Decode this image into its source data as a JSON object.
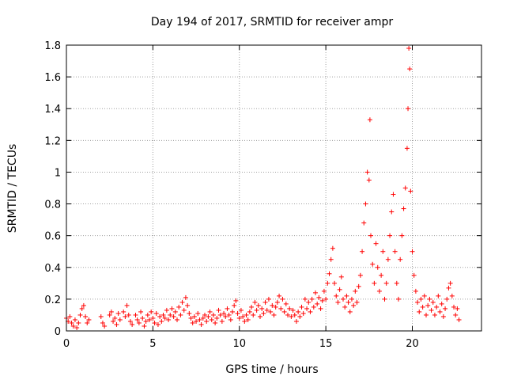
{
  "chart_data": {
    "type": "scatter",
    "title": "Day 194 of 2017, SRMTID for receiver ampr",
    "xlabel": "GPS time / hours",
    "ylabel": "SRMTID / TECUs",
    "xlim": [
      0,
      24
    ],
    "ylim": [
      0,
      1.8
    ],
    "x_ticks": [
      0,
      5,
      10,
      15,
      20
    ],
    "y_ticks": [
      0,
      0.2,
      0.4,
      0.6,
      0.8,
      1,
      1.2,
      1.4,
      1.6,
      1.8
    ],
    "x_tick_labels": [
      "0",
      "5",
      "10",
      "15",
      "20"
    ],
    "y_tick_labels": [
      "0",
      "0.2",
      "0.4",
      "0.6",
      "0.8",
      "1",
      "1.2",
      "1.4",
      "1.6",
      "1.8"
    ],
    "grid": true,
    "marker": "plus",
    "marker_color": "#ff0000",
    "series": [
      {
        "name": "SRMTID",
        "points": [
          [
            0.0,
            0.08
          ],
          [
            0.1,
            0.06
          ],
          [
            0.2,
            0.09
          ],
          [
            0.3,
            0.05
          ],
          [
            0.4,
            0.03
          ],
          [
            0.5,
            0.07
          ],
          [
            0.6,
            0.02
          ],
          [
            0.7,
            0.05
          ],
          [
            0.8,
            0.1
          ],
          [
            0.9,
            0.14
          ],
          [
            1.0,
            0.16
          ],
          [
            1.1,
            0.09
          ],
          [
            1.2,
            0.05
          ],
          [
            1.3,
            0.07
          ],
          [
            2.0,
            0.09
          ],
          [
            2.1,
            0.05
          ],
          [
            2.2,
            0.03
          ],
          [
            2.5,
            0.1
          ],
          [
            2.6,
            0.12
          ],
          [
            2.7,
            0.06
          ],
          [
            2.8,
            0.08
          ],
          [
            2.9,
            0.04
          ],
          [
            3.0,
            0.11
          ],
          [
            3.1,
            0.07
          ],
          [
            3.3,
            0.12
          ],
          [
            3.4,
            0.09
          ],
          [
            3.5,
            0.16
          ],
          [
            3.6,
            0.1
          ],
          [
            3.7,
            0.06
          ],
          [
            3.8,
            0.04
          ],
          [
            4.0,
            0.1
          ],
          [
            4.1,
            0.07
          ],
          [
            4.2,
            0.05
          ],
          [
            4.3,
            0.12
          ],
          [
            4.4,
            0.08
          ],
          [
            4.5,
            0.03
          ],
          [
            4.6,
            0.06
          ],
          [
            4.7,
            0.1
          ],
          [
            4.8,
            0.07
          ],
          [
            4.9,
            0.12
          ],
          [
            5.0,
            0.08
          ],
          [
            5.1,
            0.05
          ],
          [
            5.2,
            0.11
          ],
          [
            5.3,
            0.04
          ],
          [
            5.4,
            0.09
          ],
          [
            5.5,
            0.06
          ],
          [
            5.6,
            0.1
          ],
          [
            5.7,
            0.08
          ],
          [
            5.8,
            0.13
          ],
          [
            5.9,
            0.07
          ],
          [
            6.0,
            0.1
          ],
          [
            6.1,
            0.14
          ],
          [
            6.2,
            0.09
          ],
          [
            6.3,
            0.12
          ],
          [
            6.4,
            0.07
          ],
          [
            6.5,
            0.15
          ],
          [
            6.6,
            0.1
          ],
          [
            6.7,
            0.18
          ],
          [
            6.8,
            0.13
          ],
          [
            6.9,
            0.21
          ],
          [
            7.0,
            0.16
          ],
          [
            7.1,
            0.11
          ],
          [
            7.2,
            0.08
          ],
          [
            7.3,
            0.05
          ],
          [
            7.4,
            0.09
          ],
          [
            7.5,
            0.06
          ],
          [
            7.6,
            0.11
          ],
          [
            7.7,
            0.07
          ],
          [
            7.8,
            0.04
          ],
          [
            7.9,
            0.08
          ],
          [
            8.0,
            0.1
          ],
          [
            8.1,
            0.06
          ],
          [
            8.2,
            0.09
          ],
          [
            8.3,
            0.12
          ],
          [
            8.4,
            0.07
          ],
          [
            8.5,
            0.1
          ],
          [
            8.6,
            0.05
          ],
          [
            8.7,
            0.08
          ],
          [
            8.8,
            0.13
          ],
          [
            8.9,
            0.1
          ],
          [
            9.0,
            0.06
          ],
          [
            9.1,
            0.11
          ],
          [
            9.2,
            0.09
          ],
          [
            9.3,
            0.14
          ],
          [
            9.4,
            0.1
          ],
          [
            9.5,
            0.07
          ],
          [
            9.6,
            0.12
          ],
          [
            9.7,
            0.16
          ],
          [
            9.8,
            0.19
          ],
          [
            9.9,
            0.11
          ],
          [
            10.0,
            0.08
          ],
          [
            10.1,
            0.13
          ],
          [
            10.2,
            0.09
          ],
          [
            10.3,
            0.06
          ],
          [
            10.4,
            0.1
          ],
          [
            10.5,
            0.07
          ],
          [
            10.6,
            0.12
          ],
          [
            10.7,
            0.15
          ],
          [
            10.8,
            0.1
          ],
          [
            10.9,
            0.18
          ],
          [
            11.0,
            0.13
          ],
          [
            11.1,
            0.16
          ],
          [
            11.2,
            0.09
          ],
          [
            11.3,
            0.14
          ],
          [
            11.4,
            0.11
          ],
          [
            11.5,
            0.18
          ],
          [
            11.6,
            0.13
          ],
          [
            11.7,
            0.2
          ],
          [
            11.8,
            0.12
          ],
          [
            11.9,
            0.16
          ],
          [
            12.0,
            0.1
          ],
          [
            12.1,
            0.15
          ],
          [
            12.2,
            0.18
          ],
          [
            12.3,
            0.22
          ],
          [
            12.4,
            0.14
          ],
          [
            12.5,
            0.2
          ],
          [
            12.6,
            0.12
          ],
          [
            12.7,
            0.17
          ],
          [
            12.8,
            0.1
          ],
          [
            12.9,
            0.14
          ],
          [
            13.0,
            0.09
          ],
          [
            13.1,
            0.13
          ],
          [
            13.2,
            0.1
          ],
          [
            13.3,
            0.06
          ],
          [
            13.4,
            0.12
          ],
          [
            13.5,
            0.09
          ],
          [
            13.6,
            0.15
          ],
          [
            13.7,
            0.11
          ],
          [
            13.8,
            0.2
          ],
          [
            13.9,
            0.14
          ],
          [
            14.0,
            0.18
          ],
          [
            14.1,
            0.12
          ],
          [
            14.2,
            0.2
          ],
          [
            14.3,
            0.15
          ],
          [
            14.4,
            0.24
          ],
          [
            14.5,
            0.17
          ],
          [
            14.6,
            0.21
          ],
          [
            14.7,
            0.14
          ],
          [
            14.8,
            0.19
          ],
          [
            14.9,
            0.25
          ],
          [
            15.0,
            0.2
          ],
          [
            15.1,
            0.3
          ],
          [
            15.2,
            0.36
          ],
          [
            15.3,
            0.45
          ],
          [
            15.4,
            0.52
          ],
          [
            15.5,
            0.3
          ],
          [
            15.6,
            0.22
          ],
          [
            15.7,
            0.18
          ],
          [
            15.8,
            0.26
          ],
          [
            15.9,
            0.34
          ],
          [
            16.0,
            0.2
          ],
          [
            16.1,
            0.15
          ],
          [
            16.2,
            0.22
          ],
          [
            16.3,
            0.18
          ],
          [
            16.4,
            0.12
          ],
          [
            16.5,
            0.2
          ],
          [
            16.6,
            0.16
          ],
          [
            16.7,
            0.25
          ],
          [
            16.8,
            0.18
          ],
          [
            16.9,
            0.28
          ],
          [
            17.0,
            0.35
          ],
          [
            17.1,
            0.5
          ],
          [
            17.2,
            0.68
          ],
          [
            17.3,
            0.8
          ],
          [
            17.4,
            1.0
          ],
          [
            17.5,
            0.95
          ],
          [
            17.55,
            1.33
          ],
          [
            17.6,
            0.6
          ],
          [
            17.7,
            0.42
          ],
          [
            17.8,
            0.3
          ],
          [
            17.9,
            0.55
          ],
          [
            18.0,
            0.4
          ],
          [
            18.1,
            0.25
          ],
          [
            18.2,
            0.35
          ],
          [
            18.3,
            0.5
          ],
          [
            18.4,
            0.2
          ],
          [
            18.5,
            0.3
          ],
          [
            18.6,
            0.45
          ],
          [
            18.7,
            0.6
          ],
          [
            18.8,
            0.75
          ],
          [
            18.9,
            0.86
          ],
          [
            19.0,
            0.5
          ],
          [
            19.1,
            0.3
          ],
          [
            19.2,
            0.2
          ],
          [
            19.3,
            0.45
          ],
          [
            19.4,
            0.6
          ],
          [
            19.5,
            0.77
          ],
          [
            19.6,
            0.9
          ],
          [
            19.7,
            1.15
          ],
          [
            19.75,
            1.4
          ],
          [
            19.8,
            1.78
          ],
          [
            19.85,
            1.65
          ],
          [
            19.9,
            0.88
          ],
          [
            20.0,
            0.5
          ],
          [
            20.1,
            0.35
          ],
          [
            20.2,
            0.25
          ],
          [
            20.3,
            0.18
          ],
          [
            20.4,
            0.12
          ],
          [
            20.5,
            0.2
          ],
          [
            20.6,
            0.15
          ],
          [
            20.7,
            0.22
          ],
          [
            20.8,
            0.1
          ],
          [
            20.9,
            0.16
          ],
          [
            21.0,
            0.2
          ],
          [
            21.1,
            0.13
          ],
          [
            21.2,
            0.18
          ],
          [
            21.3,
            0.1
          ],
          [
            21.4,
            0.15
          ],
          [
            21.5,
            0.22
          ],
          [
            21.6,
            0.12
          ],
          [
            21.7,
            0.17
          ],
          [
            21.8,
            0.09
          ],
          [
            21.9,
            0.14
          ],
          [
            22.0,
            0.2
          ],
          [
            22.1,
            0.27
          ],
          [
            22.2,
            0.3
          ],
          [
            22.3,
            0.22
          ],
          [
            22.4,
            0.15
          ],
          [
            22.5,
            0.1
          ],
          [
            22.6,
            0.14
          ],
          [
            22.7,
            0.07
          ]
        ]
      }
    ]
  }
}
